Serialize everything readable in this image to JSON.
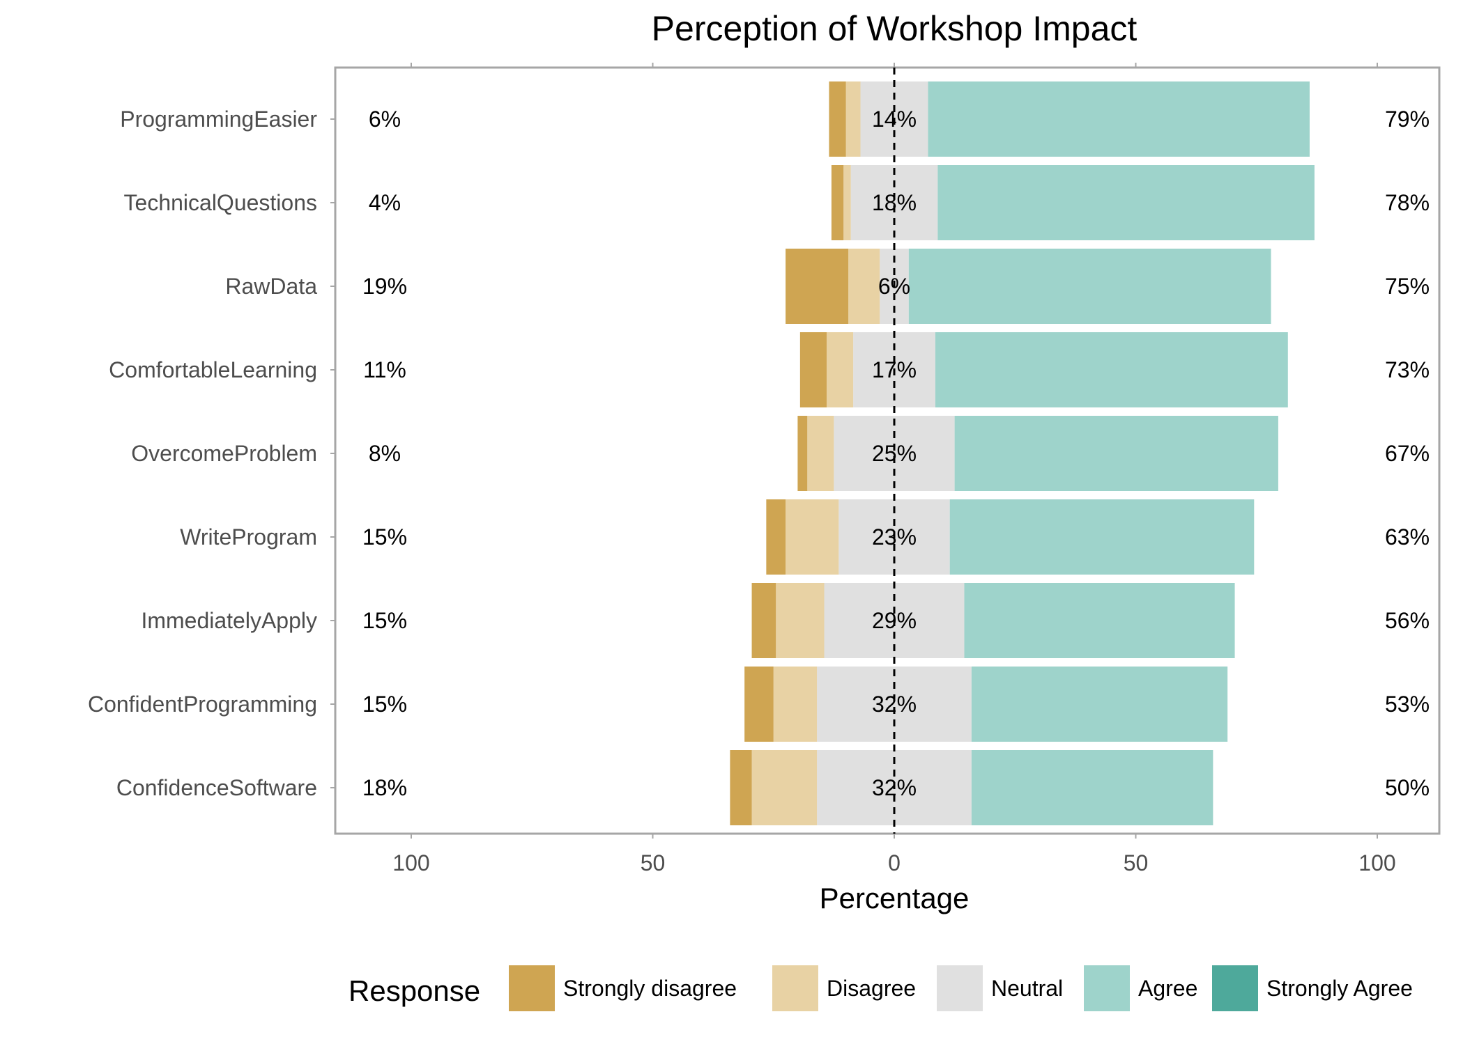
{
  "chart_data": {
    "type": "bar",
    "orientation": "horizontal-diverging",
    "title": "Perception of Workshop Impact",
    "xlabel": "Percentage",
    "ylabel": "",
    "xlim": [
      -113,
      113
    ],
    "x_ticks": [
      -100,
      -50,
      0,
      50,
      100
    ],
    "x_tick_labels": [
      "100",
      "50",
      "0",
      "50",
      "100"
    ],
    "grid": false,
    "center_line": 0,
    "legend_title": "Response",
    "legend_position": "bottom",
    "categories": [
      "ProgrammingEasier",
      "TechnicalQuestions",
      "RawData",
      "ComfortableLearning",
      "OvercomeProblem",
      "WriteProgram",
      "ImmediatelyApply",
      "ConfidentProgramming",
      "ConfidenceSoftware"
    ],
    "series": [
      {
        "name": "Strongly disagree",
        "color": "#CFA552",
        "values": [
          3.5,
          2.5,
          13,
          5.5,
          2,
          4,
          5,
          6,
          4.5
        ]
      },
      {
        "name": "Disagree",
        "color": "#E8D2A4",
        "values": [
          3,
          1.5,
          6.5,
          5.5,
          5.5,
          11,
          10,
          9,
          13.5
        ]
      },
      {
        "name": "Neutral",
        "color": "#E0E0E0",
        "values": [
          14,
          18,
          6,
          17,
          25,
          23,
          29,
          32,
          32
        ]
      },
      {
        "name": "Agree",
        "color": "#9ED3CB",
        "values": [
          79,
          78,
          75,
          73,
          67,
          63,
          56,
          53,
          50
        ]
      },
      {
        "name": "Strongly Agree",
        "color": "#4EA99B",
        "values": [
          0,
          0,
          0,
          0,
          0,
          0,
          0,
          0,
          0
        ]
      }
    ],
    "labels_low": [
      "6%",
      "4%",
      "19%",
      "11%",
      "8%",
      "15%",
      "15%",
      "15%",
      "18%"
    ],
    "labels_neutral": [
      "14%",
      "18%",
      "6%",
      "17%",
      "25%",
      "23%",
      "29%",
      "32%",
      "32%"
    ],
    "labels_high": [
      "79%",
      "78%",
      "75%",
      "73%",
      "67%",
      "63%",
      "56%",
      "53%",
      "50%"
    ]
  }
}
